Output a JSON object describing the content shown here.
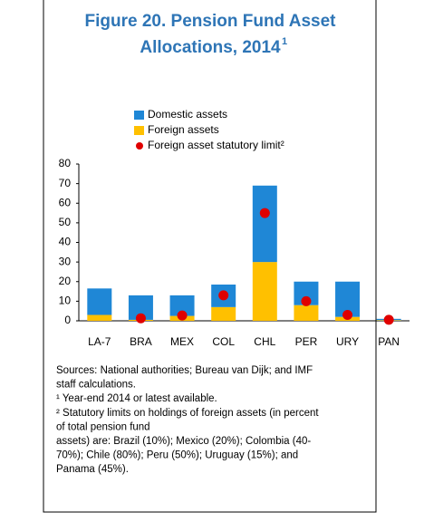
{
  "chart_data": {
    "type": "bar",
    "title": [
      "Figure 20. Pension Fund Asset",
      "Allocations, 2014"
    ],
    "title_marker": "1",
    "categories": [
      "LA-7",
      "BRA",
      "MEX",
      "COL",
      "CHL",
      "PER",
      "URY",
      "PAN"
    ],
    "series": [
      {
        "name": "Domestic assets",
        "color": "#1f87d6",
        "values": [
          13.5,
          12.5,
          10.5,
          11.5,
          39,
          12,
          18,
          0.7
        ]
      },
      {
        "name": "Foreign assets",
        "color": "#ffc000",
        "values": [
          3,
          0.5,
          2.5,
          7,
          30,
          8,
          2,
          0.3
        ]
      },
      {
        "name": "Foreign asset statutory limit²",
        "color": "#e00000",
        "type": "scatter",
        "values": [
          null,
          1.3,
          2.7,
          13,
          55,
          10,
          3,
          0.5
        ]
      }
    ],
    "stacked": true,
    "ylim": [
      0,
      80
    ],
    "yticks": [
      0,
      10,
      20,
      30,
      40,
      50,
      60,
      70,
      80
    ],
    "grid": false,
    "notes": [
      "Sources: National authorities; Bureau van Dijk; and IMF",
      "staff calculations.",
      "¹ Year-end 2014 or latest available.",
      "² Statutory limits on holdings of foreign assets (in percent",
      "of total pension fund",
      "assets) are: Brazil (10%); Mexico (20%); Colombia (40-",
      "70%); Chile (80%); Peru (50%); Uruguay (15%); and",
      "Panama (45%)."
    ]
  }
}
